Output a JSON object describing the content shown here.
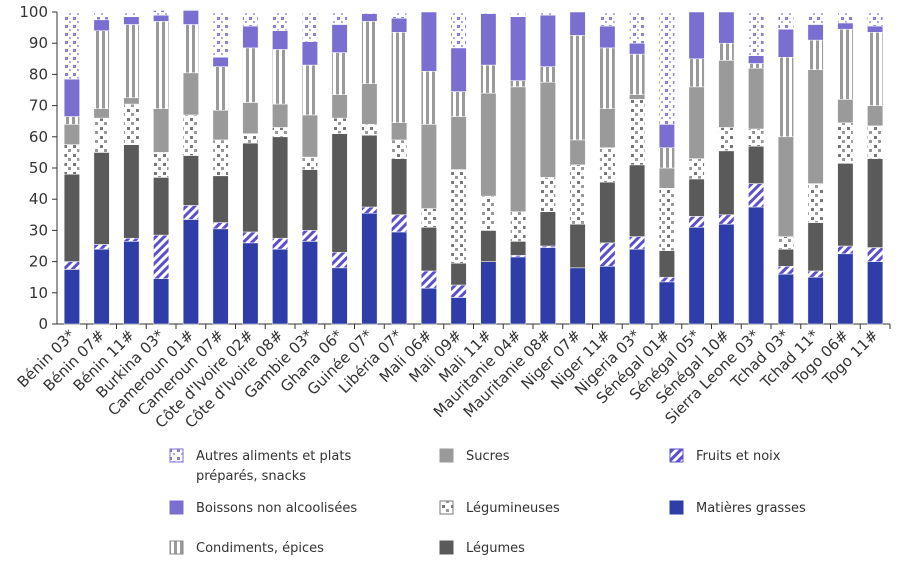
{
  "chart_data": {
    "type": "bar",
    "stacked": true,
    "percent": true,
    "ylim": [
      0,
      100
    ],
    "yticks": [
      0,
      10,
      20,
      30,
      40,
      50,
      60,
      70,
      80,
      90,
      100
    ],
    "categories": [
      "Bénin 03*",
      "Bénin 07#",
      "Bénin 11#",
      "Burkina 03*",
      "Cameroun 01#",
      "Cameroun 07#",
      "Côte d'Ivoire 02#",
      "Côte d'Ivoire 08#",
      "Gambie 03*",
      "Ghana 06*",
      "Guinée 07*",
      "Libéria 07*",
      "Mali 06#",
      "Mali 09#",
      "Mali 11#",
      "Mauritanie 04#",
      "Mauritanie 08#",
      "Niger 07#",
      "Niger 11#",
      "Nigeria 03*",
      "Sénégal 01#",
      "Sénégal 05*",
      "Sénégal 10#",
      "Sierra Leone 03*",
      "Tchad 03*",
      "Tchad 11*",
      "Togo 06#",
      "Togo 11#"
    ],
    "series": [
      {
        "name": "Matières grasses",
        "key": "fat",
        "values": [
          17.5,
          24,
          26.5,
          14.5,
          33.5,
          30.5,
          26,
          24,
          26.5,
          18,
          35.5,
          29.5,
          11.5,
          8.5,
          20,
          21.5,
          24.5,
          18,
          18.5,
          24,
          13.5,
          31,
          32,
          37.5,
          16,
          15,
          22.5,
          20
        ]
      },
      {
        "name": "Fruits et noix",
        "key": "fruits",
        "values": [
          2.5,
          1.5,
          1,
          14,
          4.5,
          2,
          3.5,
          3.5,
          3.5,
          5,
          2,
          5.5,
          5.5,
          4,
          0,
          0.5,
          0.5,
          0,
          7.5,
          4,
          1.5,
          3.5,
          3,
          7.5,
          2.5,
          2,
          2.5,
          4.5
        ]
      },
      {
        "name": "Légumes",
        "key": "legumes_veg",
        "values": [
          28,
          29.5,
          30,
          18.5,
          16,
          15,
          28.5,
          32.5,
          19.5,
          38,
          23,
          18,
          14,
          7,
          10,
          4.5,
          11,
          14,
          19.5,
          23,
          8.5,
          12,
          20.5,
          12,
          5.5,
          15.5,
          26.5,
          28.5
        ]
      },
      {
        "name": "Légumineuses",
        "key": "pulses",
        "values": [
          9.5,
          11,
          13,
          8,
          13,
          11.5,
          3,
          3,
          4,
          5,
          3.5,
          6,
          6,
          30,
          11,
          9.5,
          11,
          19,
          11,
          21,
          20,
          6.5,
          7.5,
          5.5,
          4,
          12.5,
          13,
          10.5
        ]
      },
      {
        "name": "Sucres",
        "key": "sugars",
        "values": [
          6.5,
          3,
          2,
          14,
          13.5,
          9.5,
          10,
          7.5,
          13.5,
          7.5,
          13,
          5.5,
          27,
          17,
          33,
          40,
          30.5,
          8,
          12.5,
          1.5,
          6.5,
          23,
          21.5,
          19.5,
          32,
          36.5,
          7.5,
          6.5
        ]
      },
      {
        "name": "Condiments, épices",
        "key": "condiments",
        "values": [
          2.5,
          25,
          23.5,
          28,
          15.5,
          14,
          17.5,
          17.5,
          16,
          13.5,
          20,
          29,
          17,
          8,
          9,
          2,
          5,
          33.5,
          19.5,
          13,
          6.5,
          9,
          5.5,
          1.5,
          25.5,
          9.5,
          22.5,
          23.5
        ]
      },
      {
        "name": "Boissons non alcoolisées",
        "key": "drinks",
        "values": [
          12,
          3.5,
          2.5,
          2,
          4.5,
          3,
          7,
          6,
          7.5,
          9,
          2.5,
          4.5,
          19,
          14,
          16.5,
          20.5,
          16.5,
          7.5,
          7,
          3.5,
          7.5,
          15,
          10,
          2.5,
          9,
          5,
          2,
          2
        ]
      },
      {
        "name": "Autres aliments et plats préparés, snacks",
        "key": "other",
        "values": [
          21.5,
          2.5,
          1.5,
          1.5,
          0,
          14.5,
          4.5,
          6,
          9.5,
          4,
          0.5,
          2,
          0,
          11.5,
          0.5,
          1.5,
          1,
          0,
          4.5,
          10,
          36,
          0,
          0,
          14,
          5.5,
          4,
          3.5,
          4.5
        ]
      }
    ],
    "legend_rows": [
      [
        {
          "key": "other",
          "line1": "Autres aliments et plats",
          "line2": "préparés, snacks"
        },
        {
          "key": "sugars",
          "line1": "Sucres"
        },
        {
          "key": "fruits",
          "line1": "Fruits et noix"
        }
      ],
      [
        {
          "key": "drinks",
          "line1": "Boissons non alcoolisées"
        },
        {
          "key": "pulses",
          "line1": "Légumineuses"
        },
        {
          "key": "fat",
          "line1": "Matières grasses"
        }
      ],
      [
        {
          "key": "condiments",
          "line1": "Condiments, épices"
        },
        {
          "key": "legumes_veg",
          "line1": "Légumes"
        }
      ]
    ],
    "colors": {
      "fat": "#2e3da8",
      "fruits": "#6a5fd0",
      "legumes_veg": "#5a5a5a",
      "pulses": "#888888",
      "sugars": "#9a9a9a",
      "condiments": "#999999",
      "drinks": "#7a6fd0",
      "other": "#7a6fd0",
      "axis": "#333333"
    },
    "grid": false,
    "legend_position": "bottom"
  }
}
